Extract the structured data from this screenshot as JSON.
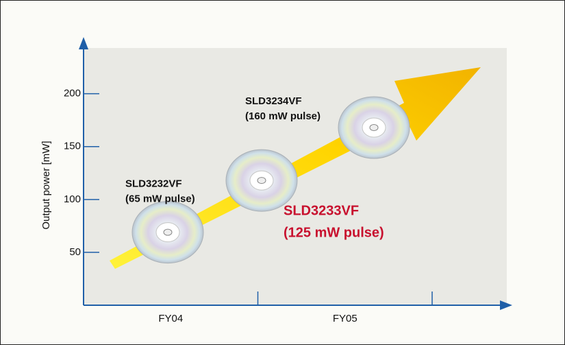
{
  "chart_data": {
    "type": "products",
    "ylabel": "Output power [mW]",
    "categories": [
      "FY04",
      "FY05"
    ],
    "ylim": [
      0,
      240
    ],
    "yticks": [
      50,
      100,
      150,
      200
    ],
    "products": [
      {
        "name": "SLD3232VF",
        "note": "(65 mW pulse)",
        "value": 69,
        "highlight": false
      },
      {
        "name": "SLD3233VF",
        "note": "(125 mW pulse)",
        "value": 118,
        "highlight": true
      },
      {
        "name": "SLD3234VF",
        "note": "(160 mW pulse)",
        "value": 168,
        "highlight": false
      }
    ],
    "axis_color": "#1f5fa8",
    "highlight_color": "#c8102e"
  }
}
